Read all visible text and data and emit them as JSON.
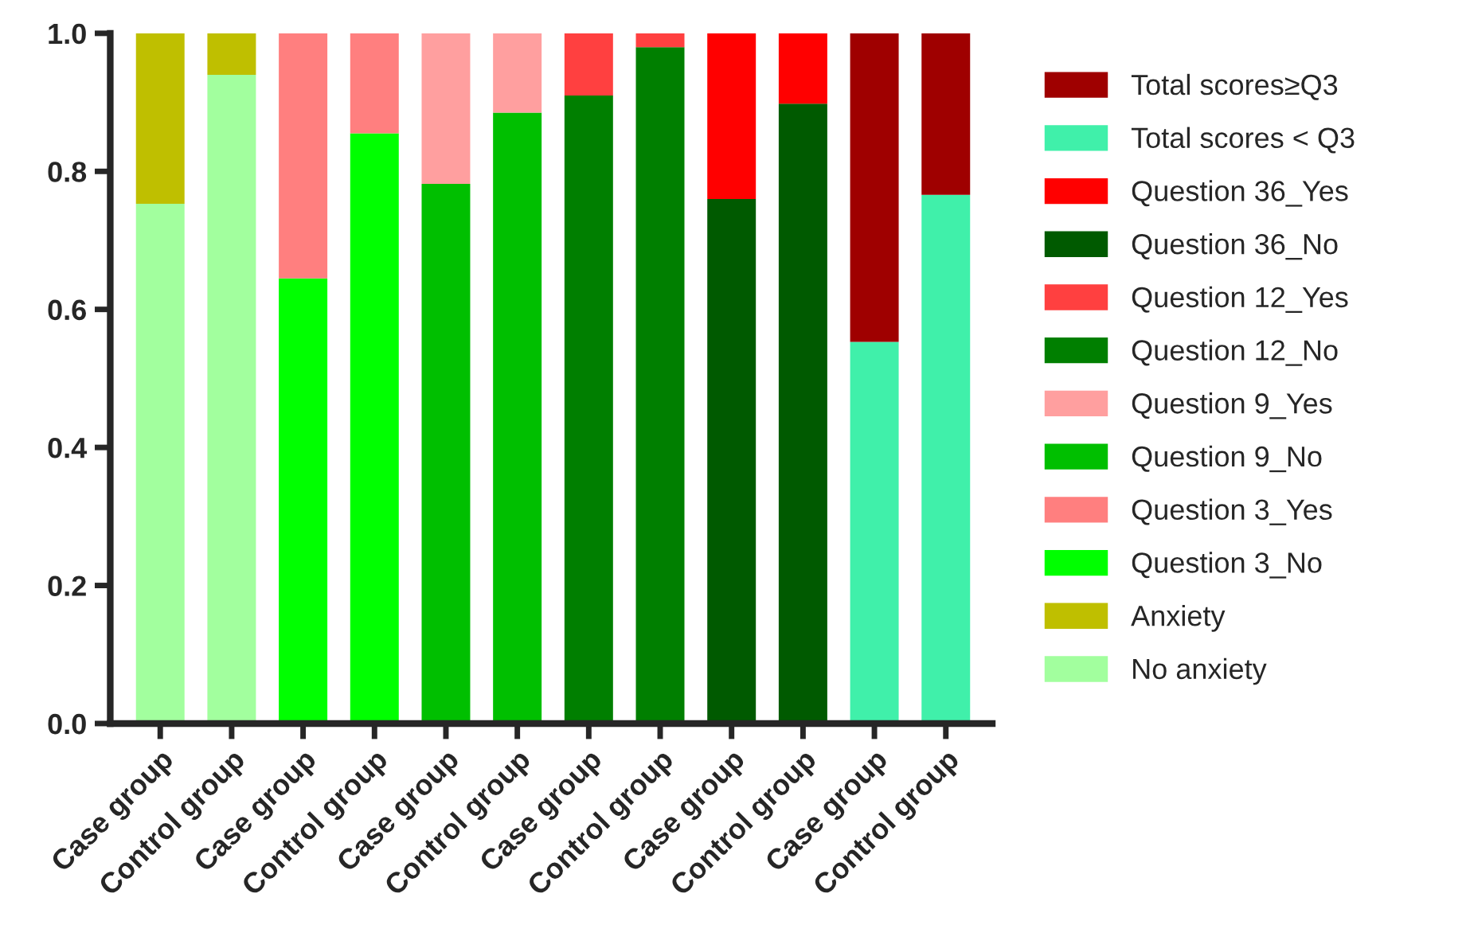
{
  "chart_data": {
    "type": "bar",
    "stacked": true,
    "legend": "right",
    "grid": false,
    "categories": [
      "Case group",
      "Control group",
      "Case group",
      "Control group",
      "Case group",
      "Control group",
      "Case group",
      "Control group",
      "Case group",
      "Control group",
      "Case group",
      "Control group"
    ],
    "ylim": [
      0,
      1
    ],
    "yticks": [
      {
        "value": 0,
        "label": "0.0"
      },
      {
        "value": 0.2,
        "label": "0.2"
      },
      {
        "value": 0.4,
        "label": "0.4"
      },
      {
        "value": 0.6,
        "label": "0.6"
      },
      {
        "value": 0.8,
        "label": "0.8"
      },
      {
        "value": 1,
        "label": "1.0"
      }
    ],
    "series": [
      {
        "name": "No anxiety",
        "color": "#a2ff9e",
        "values": [
          0.753,
          0.94,
          null,
          null,
          null,
          null,
          null,
          null,
          null,
          null,
          null,
          null
        ]
      },
      {
        "name": "Anxiety",
        "color": "#bfbf00",
        "values": [
          0.247,
          0.06,
          null,
          null,
          null,
          null,
          null,
          null,
          null,
          null,
          null,
          null
        ]
      },
      {
        "name": "Question 3_No",
        "color": "#00ff00",
        "values": [
          null,
          null,
          0.645,
          0.855,
          null,
          null,
          null,
          null,
          null,
          null,
          null,
          null
        ]
      },
      {
        "name": "Question 3_Yes",
        "color": "#ff7f7f",
        "values": [
          null,
          null,
          0.355,
          0.145,
          null,
          null,
          null,
          null,
          null,
          null,
          null,
          null
        ]
      },
      {
        "name": "Question 9_No",
        "color": "#00bf00",
        "values": [
          null,
          null,
          null,
          null,
          0.782,
          0.885,
          null,
          null,
          null,
          null,
          null,
          null
        ]
      },
      {
        "name": "Question 9_Yes",
        "color": "#ff9f9f",
        "values": [
          null,
          null,
          null,
          null,
          0.218,
          0.115,
          null,
          null,
          null,
          null,
          null,
          null
        ]
      },
      {
        "name": "Question 12_No",
        "color": "#007f00",
        "values": [
          null,
          null,
          null,
          null,
          null,
          null,
          0.91,
          0.98,
          null,
          null,
          null,
          null
        ]
      },
      {
        "name": "Question 12_Yes",
        "color": "#ff4040",
        "values": [
          null,
          null,
          null,
          null,
          null,
          null,
          0.09,
          0.02,
          null,
          null,
          null,
          null
        ]
      },
      {
        "name": "Question 36_No",
        "color": "#005a00",
        "values": [
          null,
          null,
          null,
          null,
          null,
          null,
          null,
          null,
          0.76,
          0.898,
          null,
          null
        ]
      },
      {
        "name": "Question 36_Yes",
        "color": "#ff0000",
        "values": [
          null,
          null,
          null,
          null,
          null,
          null,
          null,
          null,
          0.24,
          0.102,
          null,
          null
        ]
      },
      {
        "name": "Total scores < Q3",
        "color": "#40f0aa",
        "values": [
          null,
          null,
          null,
          null,
          null,
          null,
          null,
          null,
          null,
          null,
          0.553,
          0.766
        ]
      },
      {
        "name": "Total scores≥Q3",
        "color": "#9f0000",
        "values": [
          null,
          null,
          null,
          null,
          null,
          null,
          null,
          null,
          null,
          null,
          0.447,
          0.234
        ]
      }
    ]
  }
}
